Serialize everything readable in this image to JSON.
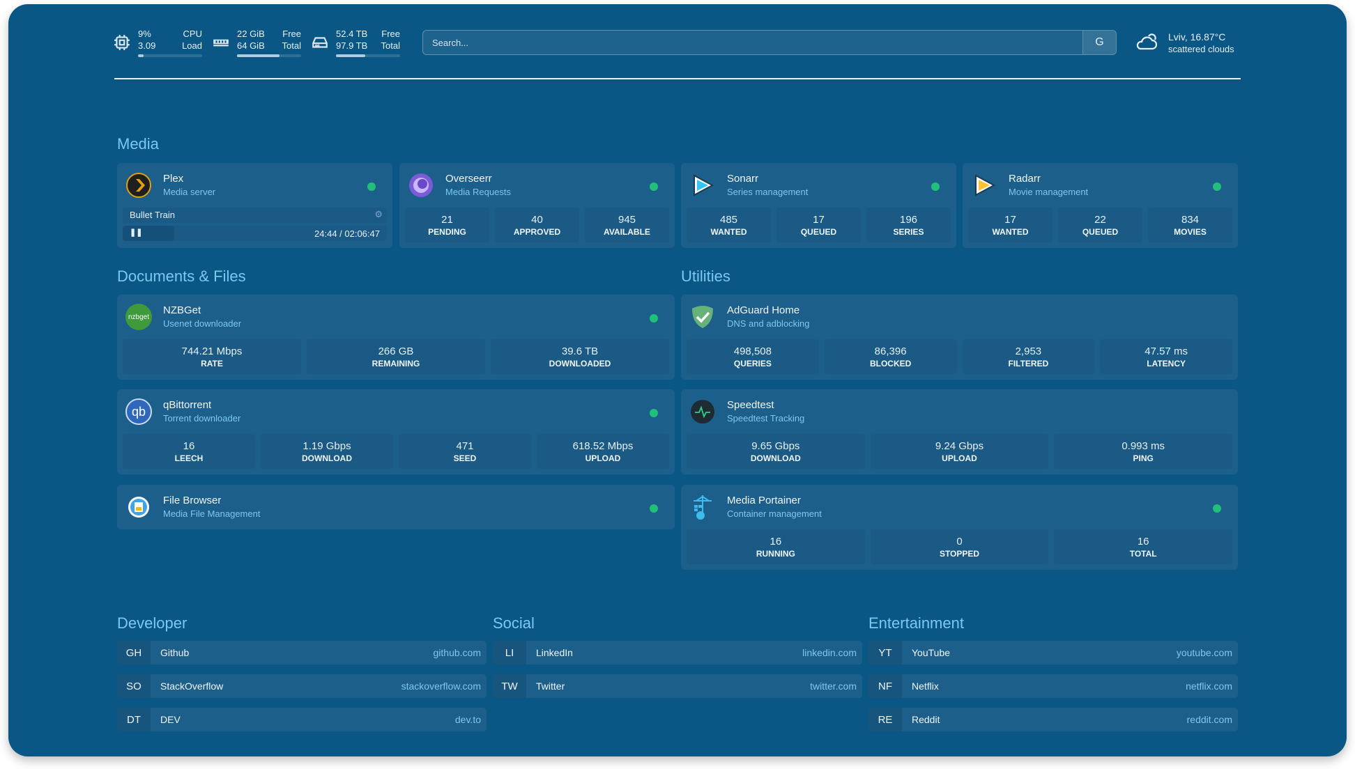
{
  "header": {
    "cpu": {
      "load_pct": "9%",
      "load_avg": "3.09",
      "label1": "CPU",
      "label2": "Load",
      "fill": 0.09
    },
    "memory": {
      "free": "22 GiB",
      "total": "64 GiB",
      "label1": "Free",
      "label2": "Total",
      "fill": 0.66
    },
    "disk": {
      "free": "52.4 TB",
      "total": "97.9 TB",
      "label1": "Free",
      "label2": "Total",
      "fill": 0.46
    },
    "search": {
      "placeholder": "Search...",
      "engine_label": "G"
    },
    "weather": {
      "location_temp": "Lviv, 16.87°C",
      "condition": "scattered clouds",
      "icon": "cloud-sun-icon"
    }
  },
  "sections": {
    "media": "Media",
    "documents": "Documents & Files",
    "utilities": "Utilities",
    "developer": "Developer",
    "social": "Social",
    "entertainment": "Entertainment"
  },
  "status_color": "#21c07a",
  "media": {
    "plex": {
      "name": "Plex",
      "sub": "Media server",
      "now_playing": "Bullet Train",
      "time": "24:44 / 02:06:47",
      "progress": 0.195
    },
    "overseerr": {
      "name": "Overseerr",
      "sub": "Media Requests",
      "stats": [
        {
          "v": "21",
          "l": "PENDING"
        },
        {
          "v": "40",
          "l": "APPROVED"
        },
        {
          "v": "945",
          "l": "AVAILABLE"
        }
      ]
    },
    "sonarr": {
      "name": "Sonarr",
      "sub": "Series management",
      "stats": [
        {
          "v": "485",
          "l": "WANTED"
        },
        {
          "v": "17",
          "l": "QUEUED"
        },
        {
          "v": "196",
          "l": "SERIES"
        }
      ]
    },
    "radarr": {
      "name": "Radarr",
      "sub": "Movie management",
      "stats": [
        {
          "v": "17",
          "l": "WANTED"
        },
        {
          "v": "22",
          "l": "QUEUED"
        },
        {
          "v": "834",
          "l": "MOVIES"
        }
      ]
    }
  },
  "documents": {
    "nzbget": {
      "name": "NZBGet",
      "sub": "Usenet downloader",
      "logo_text": "nzbget",
      "stats": [
        {
          "v": "744.21 Mbps",
          "l": "RATE"
        },
        {
          "v": "266 GB",
          "l": "REMAINING"
        },
        {
          "v": "39.6 TB",
          "l": "DOWNLOADED"
        }
      ]
    },
    "qbittorrent": {
      "name": "qBittorrent",
      "sub": "Torrent downloader",
      "logo_text": "qb",
      "stats": [
        {
          "v": "16",
          "l": "LEECH"
        },
        {
          "v": "1.19 Gbps",
          "l": "DOWNLOAD"
        },
        {
          "v": "471",
          "l": "SEED"
        },
        {
          "v": "618.52 Mbps",
          "l": "UPLOAD"
        }
      ]
    },
    "filebrowser": {
      "name": "File Browser",
      "sub": "Media File Management"
    }
  },
  "utilities": {
    "adguard": {
      "name": "AdGuard Home",
      "sub": "DNS and adblocking",
      "stats": [
        {
          "v": "498,508",
          "l": "QUERIES"
        },
        {
          "v": "86,396",
          "l": "BLOCKED"
        },
        {
          "v": "2,953",
          "l": "FILTERED"
        },
        {
          "v": "47.57 ms",
          "l": "LATENCY"
        }
      ]
    },
    "speedtest": {
      "name": "Speedtest",
      "sub": "Speedtest Tracking",
      "stats": [
        {
          "v": "9.65 Gbps",
          "l": "DOWNLOAD"
        },
        {
          "v": "9.24 Gbps",
          "l": "UPLOAD"
        },
        {
          "v": "0.993 ms",
          "l": "PING"
        }
      ]
    },
    "portainer": {
      "name": "Media Portainer",
      "sub": "Container management",
      "stats": [
        {
          "v": "16",
          "l": "RUNNING"
        },
        {
          "v": "0",
          "l": "STOPPED"
        },
        {
          "v": "16",
          "l": "TOTAL"
        }
      ]
    }
  },
  "bookmarks": {
    "developer": [
      {
        "abbr": "GH",
        "name": "Github",
        "url": "github.com"
      },
      {
        "abbr": "SO",
        "name": "StackOverflow",
        "url": "stackoverflow.com"
      },
      {
        "abbr": "DT",
        "name": "DEV",
        "url": "dev.to"
      }
    ],
    "social": [
      {
        "abbr": "LI",
        "name": "LinkedIn",
        "url": "linkedin.com"
      },
      {
        "abbr": "TW",
        "name": "Twitter",
        "url": "twitter.com"
      }
    ],
    "entertainment": [
      {
        "abbr": "YT",
        "name": "YouTube",
        "url": "youtube.com"
      },
      {
        "abbr": "NF",
        "name": "Netflix",
        "url": "netflix.com"
      },
      {
        "abbr": "RE",
        "name": "Reddit",
        "url": "reddit.com"
      }
    ]
  }
}
